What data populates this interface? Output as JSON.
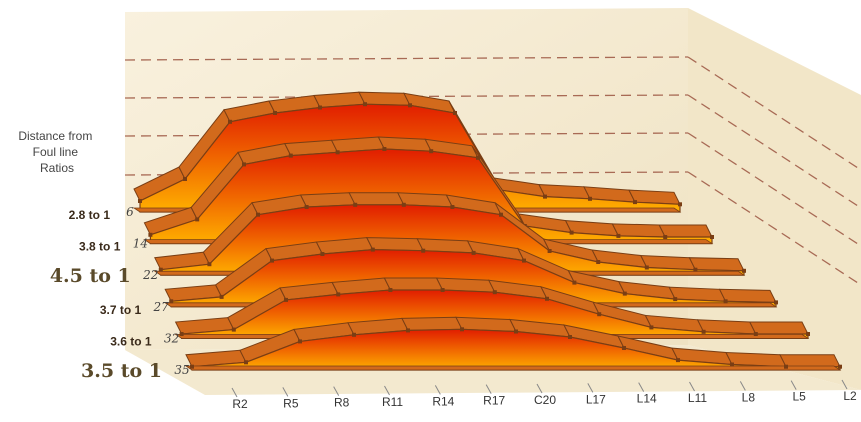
{
  "chart_data": {
    "type": "area",
    "title": "",
    "ylabel": "Distance from Foul line Ratios",
    "x": [
      "R2",
      "R5",
      "R8",
      "R11",
      "R14",
      "R17",
      "C20",
      "L17",
      "L14",
      "L11",
      "L8",
      "L5",
      "L2"
    ],
    "depth_ticks": [
      "6",
      "14",
      "22",
      "27",
      "32",
      "35"
    ],
    "ratio_labels": [
      "2.8 to 1",
      "3.8 to 1",
      "4.5 to 1",
      "3.7 to 1",
      "3.6 to 1",
      "3.5 to 1"
    ],
    "emphasized_ratios": [
      "4.5 to 1",
      "3.5 to 1"
    ],
    "y_range": [
      0,
      100
    ],
    "grid": true,
    "series": [
      {
        "values": [
          10,
          30,
          82,
          90,
          95,
          98,
          97,
          90,
          20,
          14,
          12,
          9,
          7
        ]
      },
      {
        "values": [
          8,
          22,
          72,
          80,
          83,
          86,
          84,
          78,
          16,
          10,
          7,
          6,
          6
        ]
      },
      {
        "values": [
          5,
          10,
          55,
          62,
          64,
          64,
          62,
          55,
          22,
          12,
          7,
          5,
          4
        ]
      },
      {
        "values": [
          5,
          9,
          42,
          48,
          52,
          51,
          49,
          42,
          22,
          12,
          7,
          5,
          4
        ]
      },
      {
        "values": [
          4,
          8,
          35,
          40,
          44,
          44,
          42,
          36,
          22,
          10,
          6,
          4,
          4
        ]
      },
      {
        "values": [
          3,
          7,
          26,
          32,
          36,
          37,
          35,
          30,
          20,
          9,
          5,
          3,
          3
        ]
      }
    ],
    "colors": {
      "wall": "#f6ecd2",
      "gridline": "#a86a55",
      "top_face": "#d26a1c",
      "edge": "#7a3e14",
      "fill_top": "#e11d00",
      "fill_bottom": "#ffb000"
    }
  }
}
